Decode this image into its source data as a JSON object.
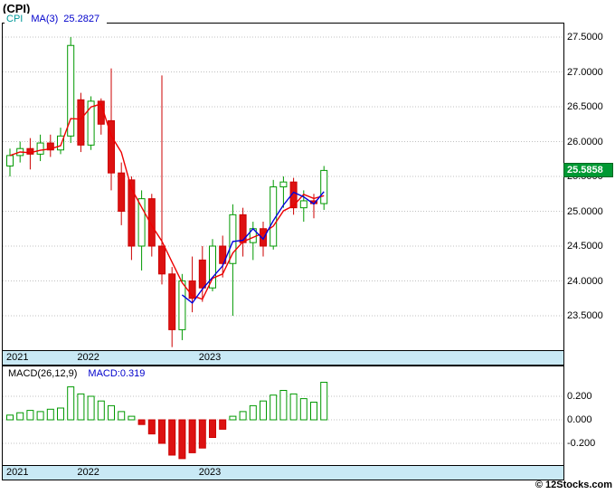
{
  "header": {
    "symbol_title": "(CPI)",
    "legend": {
      "series": "CPI",
      "ma_label": "MA(3)",
      "ma_value": "25.2827"
    }
  },
  "price_axis": {
    "ticks": [
      {
        "label": "27.5000",
        "value": 27.5
      },
      {
        "label": "27.0000",
        "value": 27.0
      },
      {
        "label": "26.5000",
        "value": 26.5
      },
      {
        "label": "26.0000",
        "value": 26.0
      },
      {
        "label": "25.5000",
        "value": 25.5
      },
      {
        "label": "25.0000",
        "value": 25.0
      },
      {
        "label": "24.5000",
        "value": 24.5
      },
      {
        "label": "24.0000",
        "value": 24.0
      },
      {
        "label": "23.5000",
        "value": 23.5
      }
    ],
    "last_price": {
      "label": "25.5858",
      "value": 25.5858
    }
  },
  "macd_panel": {
    "title": "MACD(26,12,9)",
    "value_label": "MACD:0.319",
    "ticks": [
      {
        "label": "0.200",
        "value": 0.2
      },
      {
        "label": "0.000",
        "value": 0.0
      },
      {
        "label": "-0.200",
        "value": -0.2
      }
    ]
  },
  "footer": {
    "credit": "© 12Stocks.com"
  },
  "colors": {
    "up": "#009900",
    "down": "#cc0000",
    "down_fill": "#dd1111",
    "ma_fast": "#ee0000",
    "ma_slow": "#0000dd",
    "band": "#c9e9f5",
    "tag_bg": "#009933",
    "grid": "#c0c0c0",
    "legend_series": "#009999",
    "legend_blue": "#0000cc"
  },
  "chart_data": {
    "type": "candlestick+macd",
    "symbol": "CPI",
    "x_unit": "month",
    "title": "(CPI)",
    "legend": [
      "CPI",
      "MA(3) 25.2827"
    ],
    "year_marks": [
      {
        "label": "2021",
        "index": 0
      },
      {
        "label": "2022",
        "index": 7
      },
      {
        "label": "2023",
        "index": 19
      }
    ],
    "price": {
      "ylim": [
        23.0,
        27.75
      ],
      "y_grid_step": 0.5,
      "last_close": 25.5858,
      "ma3_last": 25.2827,
      "candles_ohlc": [
        [
          25.65,
          25.9,
          25.5,
          25.8
        ],
        [
          25.8,
          26.0,
          25.7,
          25.9
        ],
        [
          25.9,
          26.05,
          25.6,
          25.82
        ],
        [
          25.82,
          26.1,
          25.72,
          25.98
        ],
        [
          25.98,
          26.1,
          25.78,
          25.88
        ],
        [
          25.88,
          26.2,
          25.82,
          26.08
        ],
        [
          26.08,
          27.5,
          25.98,
          27.38
        ],
        [
          26.6,
          26.7,
          25.85,
          25.95
        ],
        [
          25.95,
          26.65,
          25.88,
          26.58
        ],
        [
          26.58,
          26.62,
          26.1,
          26.25
        ],
        [
          26.3,
          27.05,
          25.3,
          25.55
        ],
        [
          25.55,
          25.7,
          24.8,
          25.0
        ],
        [
          25.45,
          25.5,
          24.3,
          24.5
        ],
        [
          24.5,
          25.3,
          24.15,
          25.18
        ],
        [
          25.18,
          25.25,
          24.35,
          24.5
        ],
        [
          24.5,
          26.95,
          23.95,
          24.1
        ],
        [
          24.1,
          24.2,
          23.05,
          23.3
        ],
        [
          23.3,
          24.1,
          23.15,
          24.0
        ],
        [
          24.0,
          24.35,
          23.55,
          23.75
        ],
        [
          24.3,
          24.5,
          23.7,
          23.9
        ],
        [
          23.9,
          24.6,
          23.85,
          24.5
        ],
        [
          24.5,
          24.65,
          24.05,
          24.25
        ],
        [
          24.25,
          25.1,
          23.5,
          24.95
        ],
        [
          24.95,
          25.05,
          24.35,
          24.55
        ],
        [
          24.55,
          24.85,
          24.3,
          24.75
        ],
        [
          24.75,
          24.85,
          24.35,
          24.5
        ],
        [
          24.5,
          25.45,
          24.45,
          25.35
        ],
        [
          25.35,
          25.5,
          25.05,
          25.42
        ],
        [
          25.42,
          25.48,
          24.95,
          25.05
        ],
        [
          25.05,
          25.3,
          24.85,
          25.15
        ],
        [
          25.15,
          25.25,
          24.9,
          25.11
        ],
        [
          25.11,
          25.65,
          25.02,
          25.5858
        ]
      ]
    },
    "macd": {
      "params": "26,12,9",
      "last": 0.319,
      "ylim": [
        -0.38,
        0.42
      ],
      "values": [
        0.04,
        0.06,
        0.08,
        0.07,
        0.09,
        0.1,
        0.28,
        0.22,
        0.2,
        0.16,
        0.12,
        0.07,
        0.03,
        -0.04,
        -0.12,
        -0.2,
        -0.3,
        -0.33,
        -0.28,
        -0.24,
        -0.15,
        -0.08,
        0.03,
        0.07,
        0.12,
        0.16,
        0.21,
        0.25,
        0.22,
        0.18,
        0.15,
        0.319
      ]
    }
  }
}
